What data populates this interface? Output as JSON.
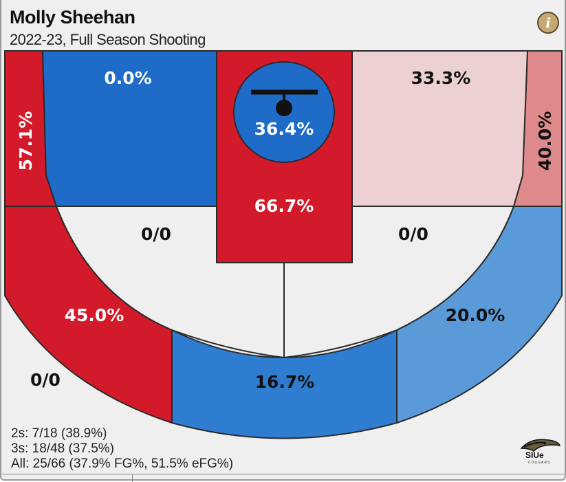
{
  "header": {
    "player_name": "Molly Sheehan",
    "subtitle": "2022-23, Full Season Shooting",
    "info_icon": "info-icon"
  },
  "colors": {
    "hot_red": "#d21a2a",
    "warm_red": "#de8a8c",
    "light_pink": "#ecd0d2",
    "neutral": "#efefef",
    "light_blue": "#5a9ad8",
    "mid_blue": "#2f7dd0",
    "deep_blue": "#1e6bc8",
    "line": "#2b2b2b"
  },
  "chart_data": {
    "type": "heatmap",
    "title": "Molly Sheehan",
    "subtitle": "2022-23, Full Season Shooting",
    "zones": [
      {
        "zone": "left-corner-three",
        "label": "57.1%",
        "value": 57.1
      },
      {
        "zone": "left-baseline-two",
        "label": "0.0%",
        "value": 0.0
      },
      {
        "zone": "rim",
        "label": "36.4%",
        "value": 36.4
      },
      {
        "zone": "paint",
        "label": "66.7%",
        "value": 66.7
      },
      {
        "zone": "right-baseline-two",
        "label": "33.3%",
        "value": 33.3
      },
      {
        "zone": "right-corner-three",
        "label": "40.0%",
        "value": 40.0
      },
      {
        "zone": "left-wing-two",
        "label": "0/0",
        "value": null
      },
      {
        "zone": "right-wing-two",
        "label": "0/0",
        "value": null
      },
      {
        "zone": "left-wing-three",
        "label": "45.0%",
        "value": 45.0
      },
      {
        "zone": "top-key-three",
        "label": "16.7%",
        "value": 16.7
      },
      {
        "zone": "right-wing-three",
        "label": "20.0%",
        "value": 20.0
      },
      {
        "zone": "left-deep-three",
        "label": "0/0",
        "value": null
      }
    ]
  },
  "stats": {
    "twos": "2s: 7/18 (38.9%)",
    "threes": "3s: 18/48 (37.5%)",
    "all": "All: 25/66 (37.9% FG%, 51.5% eFG%)"
  },
  "logo": {
    "icon": "siue-cougar-logo",
    "text": "SIUe",
    "subtext": "COUGARS"
  }
}
